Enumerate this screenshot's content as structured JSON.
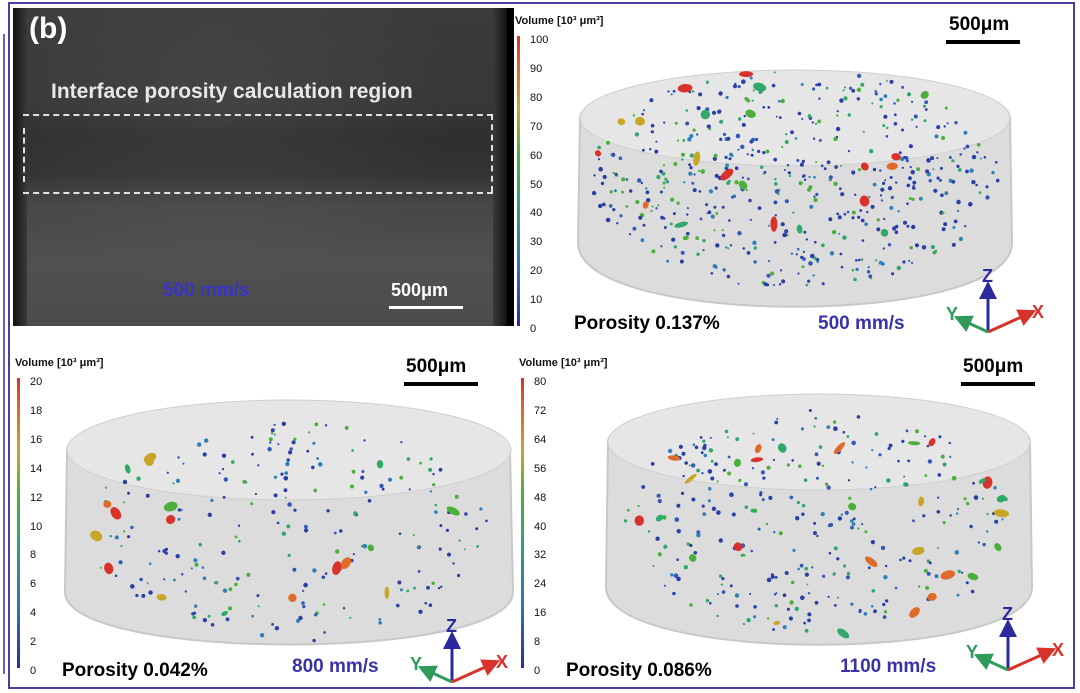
{
  "figure": {
    "panel_label": "(b)",
    "ct_panel": {
      "region_label": "Interface porosity calculation region",
      "speed": "500 mm/s",
      "scale": "500μm"
    },
    "volumes": [
      {
        "id": "top",
        "colorbar_title": "Volume [10³ μm³]",
        "ticks": [
          "100",
          "90",
          "80",
          "70",
          "60",
          "50",
          "40",
          "30",
          "20",
          "10",
          "0"
        ],
        "scale": "500μm",
        "porosity": "Porosity 0.137%",
        "speed": "500 mm/s"
      },
      {
        "id": "bottom-left",
        "colorbar_title": "Volume [10³ μm³]",
        "ticks": [
          "20",
          "18",
          "16",
          "14",
          "12",
          "10",
          "8",
          "6",
          "4",
          "2",
          "0"
        ],
        "scale": "500μm",
        "porosity": "Porosity 0.042%",
        "speed": "800 mm/s"
      },
      {
        "id": "bottom-right",
        "colorbar_title": "Volume [10³ μm³]",
        "ticks": [
          "80",
          "72",
          "64",
          "56",
          "48",
          "40",
          "32",
          "24",
          "16",
          "8",
          "0"
        ],
        "scale": "500μm",
        "porosity": "Porosity 0.086%",
        "speed": "1100 mm/s"
      }
    ],
    "axes": {
      "x": "X",
      "y": "Y",
      "z": "Z"
    },
    "colors": {
      "speed_text": "#3a33a8",
      "axis_x": "#d8322b",
      "axis_y": "#2f9b5a",
      "axis_z": "#2a2a9e",
      "frame": "#4a3f9e"
    }
  }
}
